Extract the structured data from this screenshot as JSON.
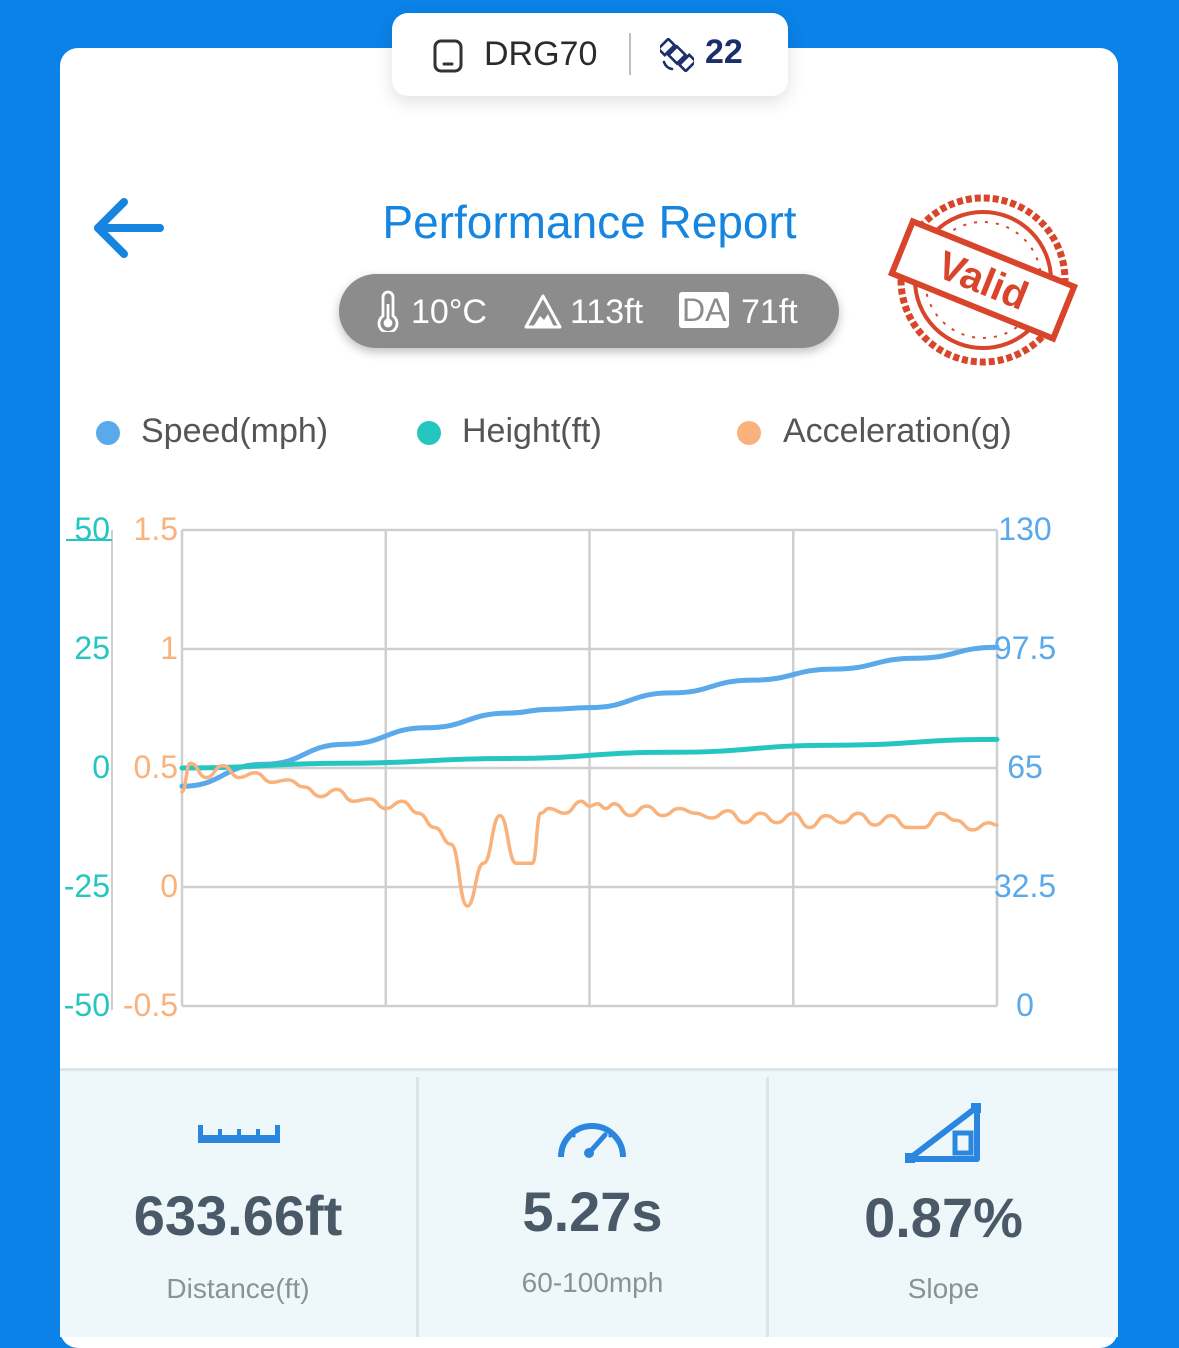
{
  "device": {
    "name": "DRG70",
    "satellites": "22",
    "icon": "phone-icon",
    "sat_icon": "satellite-icon"
  },
  "header": {
    "title": "Performance Report",
    "back_icon": "arrow-left-icon"
  },
  "conditions": {
    "temperature": "10°C",
    "altitude": "113ft",
    "da_badge": "DA",
    "density_altitude": "71ft"
  },
  "stamp": {
    "text": "Valid",
    "color": "#d9452b"
  },
  "legend": [
    {
      "label": "Speed(mph)",
      "color": "#5aa9ea"
    },
    {
      "label": "Height(ft)",
      "color": "#26c6c0"
    },
    {
      "label": "Acceleration(g)",
      "color": "#f9b27c"
    }
  ],
  "chart_data": {
    "type": "line",
    "height_axis": {
      "ticks": [
        "50",
        "25",
        "0",
        "-25",
        "-50"
      ],
      "range": [
        -50,
        50
      ],
      "color": "#26c6c0"
    },
    "accel_axis": {
      "ticks": [
        "1.5",
        "1",
        "0.5",
        "0",
        "-0.5"
      ],
      "range": [
        -0.5,
        1.5
      ],
      "color": "#f9b27c"
    },
    "speed_axis": {
      "ticks": [
        "130",
        "97.5",
        "65",
        "32.5",
        "0"
      ],
      "range": [
        0,
        130
      ],
      "color": "#5aa9ea"
    },
    "grid": true,
    "series": [
      {
        "name": "Speed(mph)",
        "axis": "speed",
        "color": "#5aa9ea",
        "x": [
          0,
          0.1,
          0.2,
          0.3,
          0.4,
          0.45,
          0.5,
          0.6,
          0.7,
          0.8,
          0.9,
          1.0
        ],
        "y": [
          60,
          66,
          71.5,
          76,
          80,
          81,
          81.5,
          85.5,
          89,
          92,
          95,
          98
        ]
      },
      {
        "name": "Height(ft)",
        "axis": "height",
        "color": "#26c6c0",
        "x": [
          0,
          0.2,
          0.4,
          0.6,
          0.8,
          1.0
        ],
        "y": [
          0,
          1,
          2,
          3.3,
          4.8,
          6
        ]
      },
      {
        "name": "Acceleration(g)",
        "axis": "accel",
        "color": "#f9b27c",
        "x": [
          0,
          0.01,
          0.03,
          0.05,
          0.07,
          0.09,
          0.11,
          0.13,
          0.15,
          0.17,
          0.19,
          0.21,
          0.23,
          0.25,
          0.27,
          0.29,
          0.31,
          0.33,
          0.35,
          0.37,
          0.39,
          0.41,
          0.42,
          0.43,
          0.44,
          0.45,
          0.47,
          0.49,
          0.5,
          0.51,
          0.52,
          0.53,
          0.55,
          0.57,
          0.59,
          0.61,
          0.63,
          0.65,
          0.67,
          0.69,
          0.71,
          0.73,
          0.75,
          0.77,
          0.79,
          0.81,
          0.83,
          0.85,
          0.87,
          0.89,
          0.91,
          0.93,
          0.95,
          0.97,
          0.99,
          1.0
        ],
        "y": [
          0.4,
          0.52,
          0.46,
          0.51,
          0.46,
          0.48,
          0.44,
          0.45,
          0.42,
          0.38,
          0.41,
          0.36,
          0.37,
          0.33,
          0.36,
          0.31,
          0.25,
          0.18,
          -0.08,
          0.1,
          0.3,
          0.1,
          0.1,
          0.1,
          0.31,
          0.33,
          0.31,
          0.36,
          0.34,
          0.35,
          0.33,
          0.35,
          0.3,
          0.34,
          0.3,
          0.33,
          0.31,
          0.29,
          0.32,
          0.27,
          0.31,
          0.27,
          0.31,
          0.25,
          0.3,
          0.27,
          0.31,
          0.26,
          0.3,
          0.25,
          0.25,
          0.31,
          0.28,
          0.24,
          0.27,
          0.26
        ]
      }
    ]
  },
  "stats": [
    {
      "value": "633.66ft",
      "label": "Distance(ft)",
      "icon": "ruler-icon"
    },
    {
      "value": "5.27s",
      "label": "60-100mph",
      "icon": "speedometer-icon"
    },
    {
      "value": "0.87%",
      "label": "Slope",
      "icon": "slope-icon"
    }
  ]
}
